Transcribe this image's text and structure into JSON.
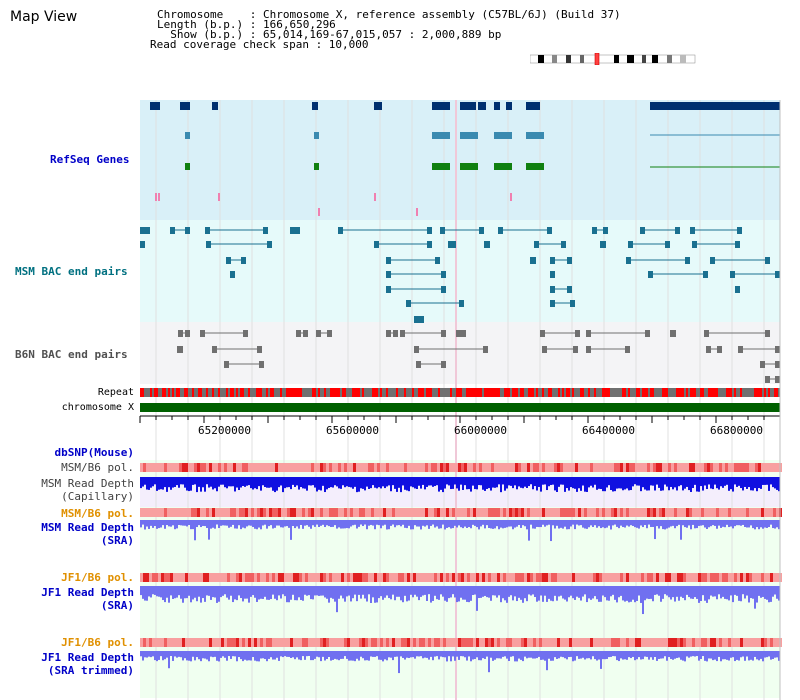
{
  "page": {
    "title": "Map View"
  },
  "info": {
    "chromosome_line": "Chromosome    : Chromosome X, reference assembly (C57BL/6J) (Build 37)",
    "length_line": "Length (b.p.) : 166,650,296",
    "show_line": "  Show (b.p.) : 65,014,169-67,015,057 : 2,000,889 bp",
    "coverage_line": "Read coverage check span : 10,000"
  },
  "tracks": {
    "refseq": "RefSeq Genes",
    "msm_bac": "MSM BAC end pairs",
    "b6n_bac": "B6N BAC end pairs",
    "repeat": "Repeat",
    "chromosome": "chromosome X",
    "dbsnp": "dbSNP(Mouse)",
    "msm_b6_pol": "MSM/B6 pol.",
    "msm_depth_cap": "MSM Read Depth\n(Capillary)",
    "msm_b6_pol2": "MSM/B6 pol.",
    "msm_depth_sra": "MSM Read Depth\n(SRA)",
    "jf1_b6_pol": "JF1/B6 pol.",
    "jf1_depth_sra": "JF1 Read Depth\n(SRA)",
    "jf1_b6_pol2": "JF1/B6 pol.",
    "jf1_depth_trim": "JF1 Read Depth\n(SRA trimmed)"
  },
  "axis": {
    "ticks": [
      "65200000",
      "65600000",
      "66000000",
      "66400000",
      "66800000"
    ]
  },
  "colors": {
    "refseq_bg": "#d9f0f8",
    "msm_bg": "#e6fafa",
    "b6n_bg": "#f4f4f6",
    "refseq_gene": "#003070",
    "msm_pair": "#1a7090",
    "b6n_pair": "#707070",
    "chromosome": "#006000",
    "repeat_red": "#ff0000",
    "depth_blue": "#1010e0",
    "depth_light": "#7070f0",
    "pol_pink": "#f8a0a0"
  }
}
